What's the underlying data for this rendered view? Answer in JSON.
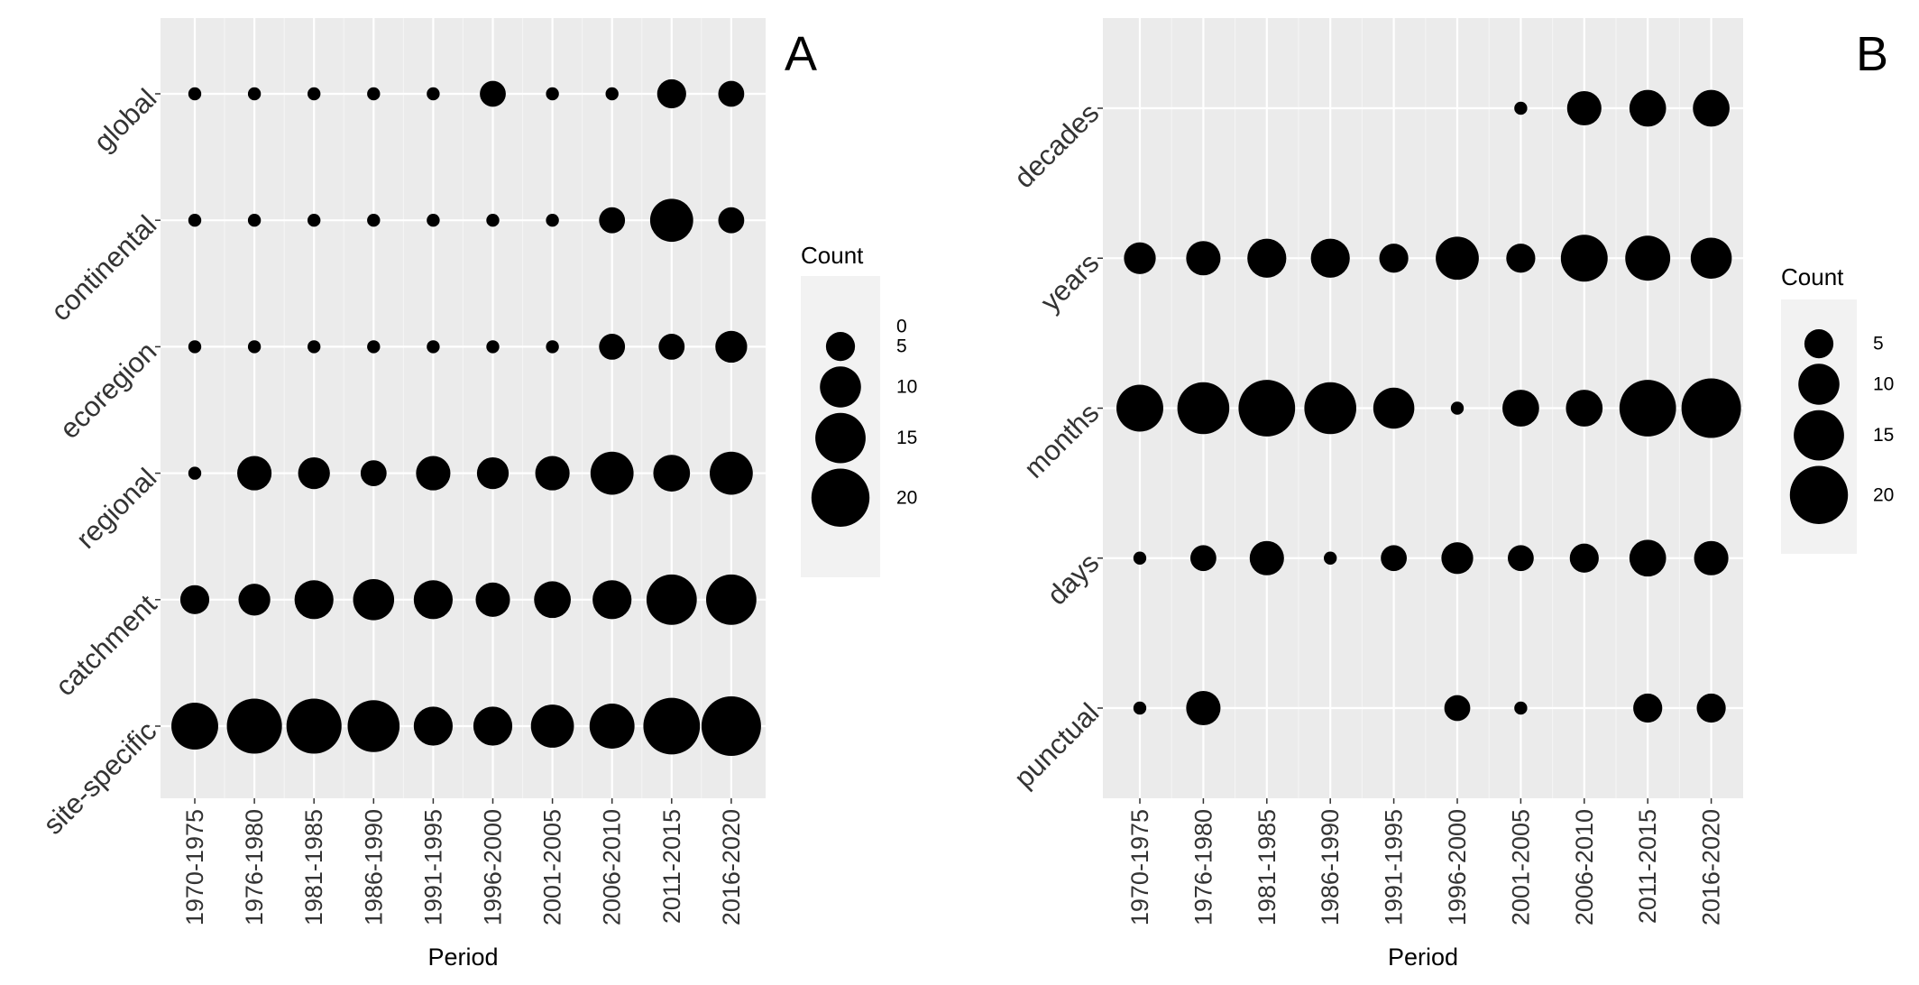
{
  "chart_data": [
    {
      "type": "bubble",
      "panel_label": "A",
      "xlabel": "Period",
      "ylabel": "",
      "x_categories": [
        "1970-1975",
        "1976-1980",
        "1981-1985",
        "1986-1990",
        "1991-1995",
        "1996-2000",
        "2001-2005",
        "2006-2010",
        "2011-2015",
        "2016-2020"
      ],
      "y_categories": [
        "site-specific",
        "catchment",
        "regional",
        "ecoregion",
        "continental",
        "global"
      ],
      "size_legend": {
        "title": "Count",
        "breaks": [
          0,
          5,
          10,
          15,
          20
        ],
        "labels": [
          "0",
          "5",
          "10",
          "15",
          "20"
        ]
      },
      "size_max": 21,
      "grid": true,
      "legend_position": "right",
      "series": [
        {
          "category": "global",
          "counts": [
            1,
            1,
            1,
            1,
            1,
            4,
            1,
            1,
            5,
            4
          ]
        },
        {
          "category": "continental",
          "counts": [
            1,
            1,
            1,
            1,
            1,
            1,
            1,
            4,
            11,
            4
          ]
        },
        {
          "category": "ecoregion",
          "counts": [
            1,
            1,
            1,
            1,
            1,
            1,
            1,
            4,
            4,
            6
          ]
        },
        {
          "category": "regional",
          "counts": [
            1,
            7,
            6,
            4,
            7,
            6,
            7,
            11,
            8,
            11
          ]
        },
        {
          "category": "catchment",
          "counts": [
            5,
            6,
            9,
            10,
            9,
            7,
            8,
            9,
            15,
            15
          ]
        },
        {
          "category": "site-specific",
          "counts": [
            13,
            18,
            18,
            16,
            9,
            9,
            11,
            12,
            19,
            21
          ]
        }
      ]
    },
    {
      "type": "bubble",
      "panel_label": "B",
      "xlabel": "Period",
      "ylabel": "",
      "x_categories": [
        "1970-1975",
        "1976-1980",
        "1981-1985",
        "1986-1990",
        "1991-1995",
        "1996-2000",
        "2001-2005",
        "2006-2010",
        "2011-2015",
        "2016-2020"
      ],
      "y_categories": [
        "punctual",
        "days",
        "months",
        "years",
        "decades"
      ],
      "size_legend": {
        "title": "Count",
        "breaks": [
          5,
          10,
          15,
          20
        ],
        "labels": [
          "5",
          "10",
          "15",
          "20"
        ]
      },
      "size_max": 21,
      "grid": true,
      "legend_position": "right",
      "series": [
        {
          "category": "decades",
          "counts": [
            null,
            null,
            null,
            null,
            null,
            null,
            1,
            7,
            8,
            8
          ]
        },
        {
          "category": "years",
          "counts": [
            6,
            7,
            9,
            9,
            5,
            11,
            5,
            13,
            12,
            10
          ]
        },
        {
          "category": "months",
          "counts": [
            13,
            16,
            19,
            16,
            10,
            1,
            8,
            8,
            19,
            21
          ]
        },
        {
          "category": "days",
          "counts": [
            1,
            4,
            7,
            1,
            4,
            6,
            4,
            5,
            8,
            7
          ]
        },
        {
          "category": "punctual",
          "counts": [
            1,
            7,
            null,
            null,
            null,
            4,
            1,
            null,
            5,
            5
          ]
        }
      ]
    }
  ]
}
